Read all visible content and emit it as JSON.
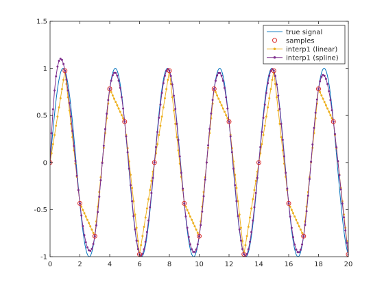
{
  "chart_data": {
    "type": "line",
    "title": "",
    "xlabel": "",
    "ylabel": "",
    "xlim": [
      0,
      20
    ],
    "ylim": [
      -1,
      1.5
    ],
    "xticks": [
      0,
      2,
      4,
      6,
      8,
      10,
      12,
      14,
      16,
      18,
      20
    ],
    "xtick_labels": [
      "0",
      "2",
      "4",
      "6",
      "8",
      "10",
      "12",
      "14",
      "16",
      "18",
      "20"
    ],
    "yticks": [
      -1,
      -0.5,
      0,
      0.5,
      1,
      1.5
    ],
    "ytick_labels": [
      "-1",
      "-0.5",
      "0",
      "0.5",
      "1",
      "1.5"
    ],
    "grid": false,
    "box": true,
    "legend": {
      "placement": "top-right"
    },
    "series": [
      {
        "name": "true signal",
        "style": "line",
        "color": "#0072bd",
        "expression": "sin(x*2*pi/3.5)",
        "x_range": [
          0,
          20
        ]
      },
      {
        "name": "samples",
        "style": "markers",
        "marker": "circle",
        "color": "#d92a2a",
        "x": [
          0,
          1,
          2,
          3,
          4,
          5,
          6,
          7,
          8,
          9,
          10,
          11,
          12,
          13,
          14,
          15,
          16,
          17,
          18,
          19,
          20
        ],
        "y": [
          0,
          0.975,
          -0.434,
          -0.782,
          0.782,
          0.434,
          -0.975,
          0,
          0.975,
          -0.434,
          -0.782,
          0.782,
          0.434,
          -0.975,
          0,
          0.975,
          -0.434,
          -0.782,
          0.782,
          0.434,
          -0.975
        ]
      },
      {
        "name": "interp1 (linear)",
        "style": "line-markers",
        "marker": "dot",
        "color": "#edb120",
        "method": "linear",
        "step": 0.1
      },
      {
        "name": "interp1 (spline)",
        "style": "line-markers",
        "marker": "dot",
        "color": "#7e2f8e",
        "method": "spline",
        "step": 0.1
      }
    ]
  }
}
